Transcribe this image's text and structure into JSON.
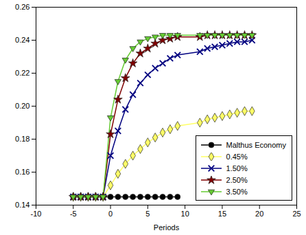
{
  "chart_data": {
    "type": "line",
    "x_label": "Periods",
    "x": [
      -5,
      -4,
      -3,
      -2,
      -1,
      0,
      1,
      2,
      3,
      4,
      5,
      6,
      7,
      8,
      9,
      12,
      13,
      14,
      15,
      16,
      17,
      18,
      19
    ],
    "series": [
      {
        "name": "Malthus Economy",
        "color": "#000000",
        "marker": "circle",
        "values": [
          0.145,
          0.145,
          0.145,
          0.145,
          0.145,
          0.145,
          0.145,
          0.145,
          0.145,
          0.145,
          0.145,
          0.145,
          0.145,
          0.145,
          0.145,
          null,
          null,
          null,
          null,
          null,
          null,
          null,
          null
        ]
      },
      {
        "name": "0.45%",
        "color": "#ffff66",
        "marker": "diamond",
        "values": [
          0.145,
          0.145,
          0.145,
          0.145,
          0.145,
          0.152,
          0.159,
          0.165,
          0.17,
          0.174,
          0.178,
          0.181,
          0.184,
          0.186,
          0.188,
          0.19,
          0.192,
          0.193,
          0.194,
          0.195,
          0.196,
          0.197,
          0.197
        ]
      },
      {
        "name": "1.50%",
        "color": "#000080",
        "marker": "x",
        "values": [
          0.145,
          0.145,
          0.145,
          0.145,
          0.145,
          0.17,
          0.185,
          0.198,
          0.207,
          0.214,
          0.219,
          0.223,
          0.226,
          0.229,
          0.231,
          0.233,
          0.235,
          0.236,
          0.237,
          0.238,
          0.239,
          0.239,
          0.24
        ]
      },
      {
        "name": "2.50%",
        "color": "#800000",
        "marker": "star",
        "values": [
          0.145,
          0.145,
          0.145,
          0.145,
          0.145,
          0.183,
          0.204,
          0.217,
          0.226,
          0.232,
          0.235,
          0.238,
          0.24,
          0.241,
          0.242,
          0.242,
          0.243,
          0.243,
          0.243,
          0.243,
          0.243,
          0.243,
          0.243
        ]
      },
      {
        "name": "3.50%",
        "color": "#66cc33",
        "marker": "triangle-down",
        "values": [
          0.145,
          0.145,
          0.145,
          0.145,
          0.145,
          0.193,
          0.215,
          0.228,
          0.235,
          0.239,
          0.241,
          0.242,
          0.243,
          0.243,
          0.243,
          0.243,
          0.243,
          0.243,
          0.243,
          0.243,
          0.243,
          0.243,
          0.243
        ]
      }
    ],
    "xlim": [
      -10,
      25
    ],
    "xticks": [
      -10,
      -5,
      0,
      5,
      10,
      15,
      20,
      25
    ],
    "ylim": [
      0.14,
      0.26
    ],
    "yticks": [
      0.14,
      0.16,
      0.18,
      {
        "value": 0.2,
        "label": "0.20"
      },
      0.22,
      0.24,
      0.26
    ],
    "grid": false,
    "legend": "lower right"
  }
}
